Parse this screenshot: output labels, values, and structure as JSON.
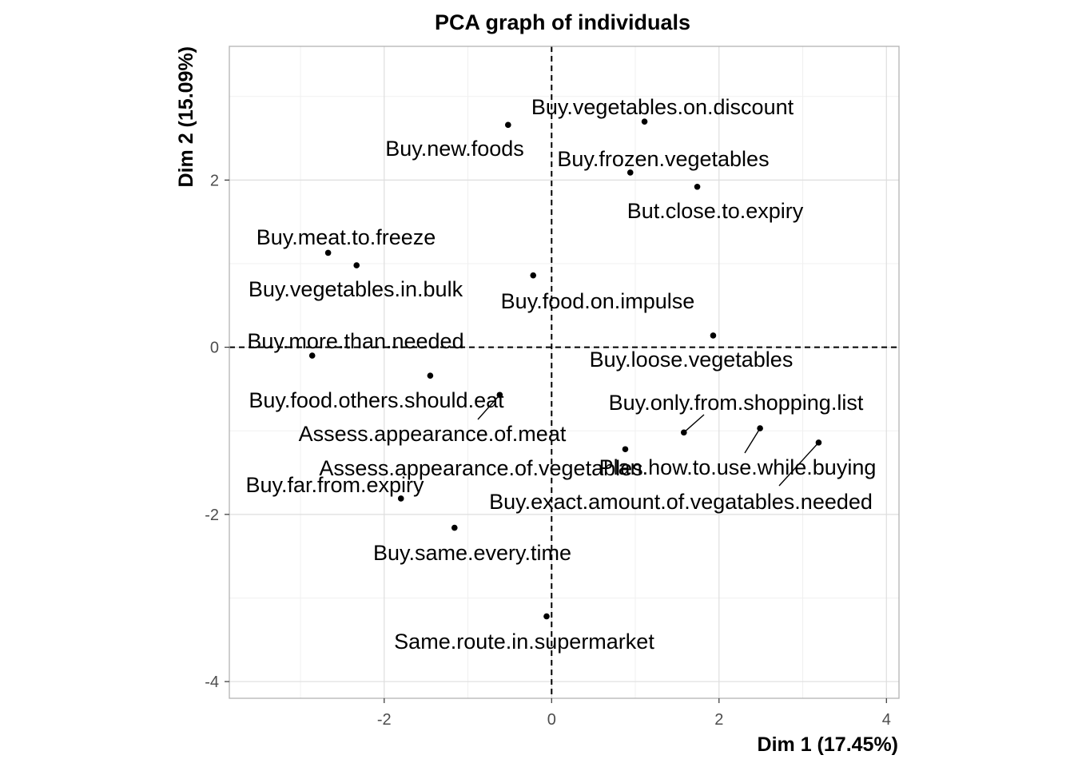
{
  "chart_data": {
    "type": "scatter",
    "title": "PCA graph of individuals",
    "xlabel": "Dim 1 (17.45%)",
    "ylabel": "Dim 2 (15.09%)",
    "xlim": [
      -3.85,
      4.15
    ],
    "ylim": [
      -4.2,
      3.6
    ],
    "x_ticks": [
      -2,
      0,
      2,
      4
    ],
    "y_ticks": [
      -4,
      -2,
      0,
      2
    ],
    "x_tick_labels": [
      "-2",
      "0",
      "2",
      "4"
    ],
    "y_tick_labels": [
      "-4",
      "-2",
      "0",
      "2"
    ],
    "grid": true,
    "reference_lines": {
      "x": 0,
      "y": 0,
      "style": "dashed"
    },
    "points": [
      {
        "label": "Buy.vegetables.on.discount",
        "x": 1.11,
        "y": 2.7
      },
      {
        "label": "Buy.new.foods",
        "x": -0.52,
        "y": 2.66
      },
      {
        "label": "Buy.frozen.vegetables",
        "x": 0.94,
        "y": 2.09
      },
      {
        "label": "But.close.to.expiry",
        "x": 1.74,
        "y": 1.92
      },
      {
        "label": "Buy.meat.to.freeze",
        "x": -2.67,
        "y": 1.13
      },
      {
        "label": "Buy.vegetables.in.bulk",
        "x": -2.33,
        "y": 0.98
      },
      {
        "label": "Buy.food.on.impulse",
        "x": -0.22,
        "y": 0.86
      },
      {
        "label": "Buy.loose.vegetables",
        "x": 1.93,
        "y": 0.14
      },
      {
        "label": "Buy.more.than.needed",
        "x": -2.86,
        "y": -0.1
      },
      {
        "label": "Buy.food.others.should.eat",
        "x": -1.45,
        "y": -0.34
      },
      {
        "label": "Assess.appearance.of.meat",
        "x": -0.62,
        "y": -0.57
      },
      {
        "label": "Buy.only.from.shopping.list",
        "x": 1.58,
        "y": -1.02
      },
      {
        "label": "Plan.how.to.use.while.buying",
        "x": 2.49,
        "y": -0.97
      },
      {
        "label": "Buy.exact.amount.of.vegatables.needed",
        "x": 3.19,
        "y": -1.14
      },
      {
        "label": "Assess.appearance.of.vegetables",
        "x": 0.88,
        "y": -1.22
      },
      {
        "label": "Buy.far.from.expiry",
        "x": -1.8,
        "y": -1.81
      },
      {
        "label": "Buy.same.every.time",
        "x": -1.16,
        "y": -2.16
      },
      {
        "label": "Same.route.in.supermarket",
        "x": -0.06,
        "y": -3.22
      }
    ]
  }
}
